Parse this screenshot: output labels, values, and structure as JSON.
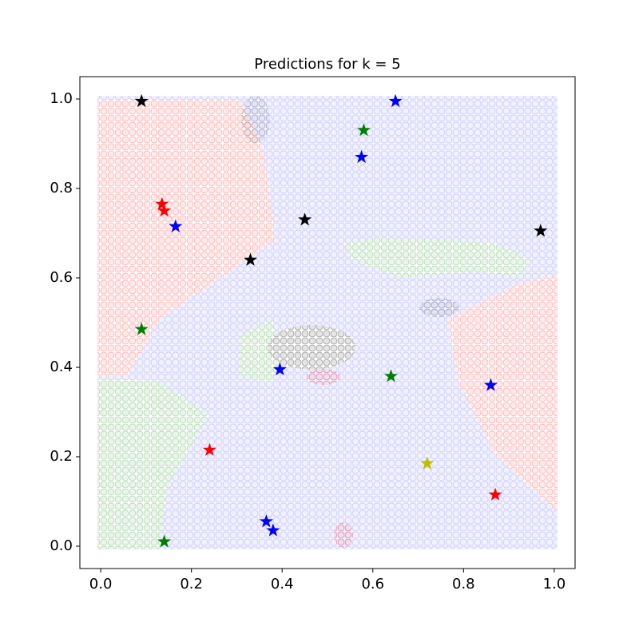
{
  "chart_data": {
    "type": "scatter",
    "title": "Predictions for k = 5",
    "xlim": [
      -0.046,
      1.046
    ],
    "ylim": [
      -0.05,
      1.05
    ],
    "xticks": [
      {
        "value": 0,
        "label": "0.0"
      },
      0.2,
      0.4,
      0.6,
      0.8,
      {
        "value": 1,
        "label": "1.0"
      }
    ],
    "yticks": [
      {
        "value": 0,
        "label": "0.0"
      },
      0.2,
      0.4,
      0.6,
      0.8,
      {
        "value": 1,
        "label": "1.0"
      }
    ],
    "series": [
      {
        "color": "#000000",
        "x": [
          0.09,
          0.45,
          0.33,
          0.97
        ],
        "values": [
          0.995,
          0.73,
          0.64,
          0.705
        ]
      },
      {
        "color": "#008000",
        "x": [
          0.58,
          0.09,
          0.64,
          0.14
        ],
        "values": [
          0.93,
          0.485,
          0.38,
          0.01
        ]
      },
      {
        "color": "#0000ff",
        "x": [
          0.65,
          0.575,
          0.165,
          0.395,
          0.86,
          0.365,
          0.38
        ],
        "values": [
          0.995,
          0.87,
          0.715,
          0.395,
          0.36,
          0.055,
          0.035
        ]
      },
      {
        "color": "#ff0000",
        "x": [
          0.135,
          0.14,
          0.24,
          0.87
        ],
        "values": [
          0.765,
          0.75,
          0.215,
          0.115
        ]
      },
      {
        "color": "#bfbf00",
        "x": [
          0.72
        ],
        "values": [
          0.185
        ]
      }
    ]
  }
}
